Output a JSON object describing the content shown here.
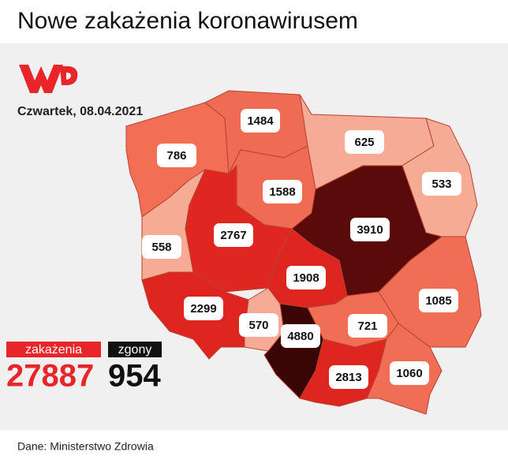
{
  "header": {
    "title": "Nowe zakażenia koronawirusem"
  },
  "date": "Czwartek, 08.04.2021",
  "regions": [
    {
      "value": 786,
      "color": "#f26e55"
    },
    {
      "value": 1484,
      "color": "#f06b53"
    },
    {
      "value": 625,
      "color": "#f6ab96"
    },
    {
      "value": 533,
      "color": "#f5ab94"
    },
    {
      "value": 1588,
      "color": "#f06b53"
    },
    {
      "value": 558,
      "color": "#f5ab94"
    },
    {
      "value": 2767,
      "color": "#df2621"
    },
    {
      "value": 3910,
      "color": "#5a0a0a"
    },
    {
      "value": 1908,
      "color": "#de2520"
    },
    {
      "value": 1085,
      "color": "#f06e56"
    },
    {
      "value": 2299,
      "color": "#df2520"
    },
    {
      "value": 570,
      "color": "#f6ab96"
    },
    {
      "value": 4880,
      "color": "#3a0505"
    },
    {
      "value": 721,
      "color": "#f06e56"
    },
    {
      "value": 2813,
      "color": "#df2520"
    },
    {
      "value": 1060,
      "color": "#f06e56"
    }
  ],
  "totals": {
    "cases_label": "zakażenia",
    "cases": 27887,
    "deaths_label": "zgony",
    "deaths": 954
  },
  "source": "Dane: Ministerstwo Zdrowia"
}
